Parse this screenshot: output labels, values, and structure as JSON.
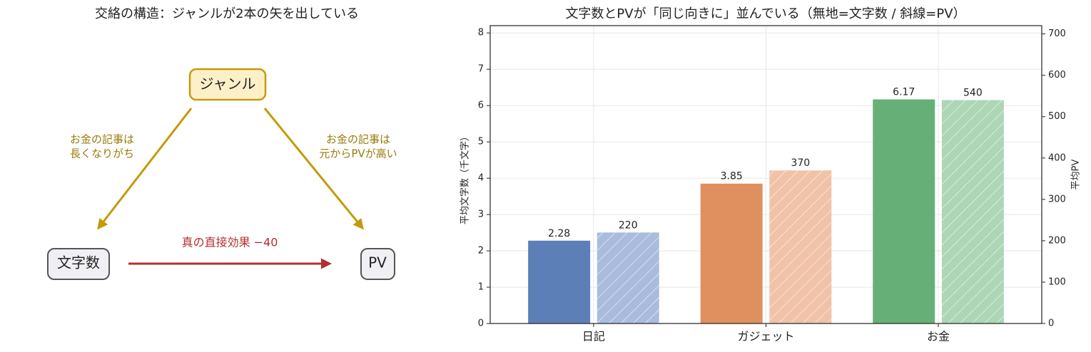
{
  "diagram": {
    "title": "交絡の構造：ジャンルが2本の矢を出している",
    "nodes": [
      {
        "label": "ジャンル"
      },
      {
        "label": "文字数"
      },
      {
        "label": "PV"
      }
    ],
    "edges": [
      {
        "label": [
          "お金の記事は",
          "長くなりがち"
        ]
      },
      {
        "label": [
          "お金の記事は",
          "元からPVが高い"
        ]
      },
      {
        "label": "真の直接効果 −40"
      }
    ]
  },
  "chart_data": {
    "type": "bar",
    "title": "文字数とPVが「同じ向きに」並んでいる（無地=文字数 / 斜線=PV）",
    "ylabel": "平均文字数（千文字）",
    "y2label": "平均PV",
    "categories": [
      "日記",
      "ガジェット",
      "お金"
    ],
    "series": [
      {
        "colors": [
          "#5d7fb7",
          "#e08f5f",
          "#66b077"
        ],
        "values": [
          2.28,
          3.85,
          6.17
        ]
      },
      {
        "colors": [
          "#a9bcdd",
          "#f0c2a7",
          "#acd6b5"
        ],
        "values": [
          220,
          370,
          540
        ],
        "axis": "y2",
        "hatch": true
      }
    ],
    "ylim": [
      0,
      8.2
    ],
    "yticks": [
      0,
      1,
      2,
      3,
      4,
      5,
      6,
      7,
      8
    ],
    "y2lim": [
      0,
      720
    ],
    "y2ticks": [
      0,
      100,
      200,
      300,
      400,
      500,
      600,
      700
    ],
    "grid": true
  }
}
